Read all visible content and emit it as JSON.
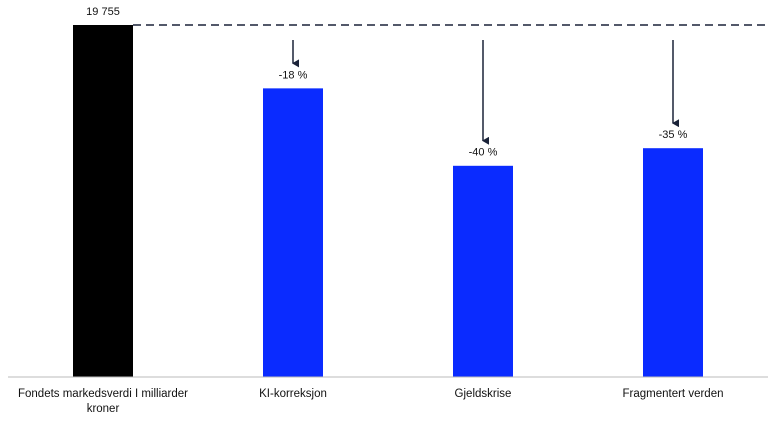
{
  "chart_data": {
    "type": "bar",
    "categories": [
      "Fondets markedsverdi I milliarder kroner",
      "KI-korreksjon",
      "Gjeldskrise",
      "Fragmentert verden"
    ],
    "values": [
      19755,
      16199,
      11853,
      12841
    ],
    "value_labels": [
      "19 755",
      null,
      null,
      null
    ],
    "changes": [
      null,
      -18,
      -40,
      -35
    ],
    "change_labels": [
      null,
      "-18 %",
      "-40 %",
      "-35 %"
    ],
    "colors": [
      "#000000",
      "#0a2bff",
      "#0a2bff",
      "#0a2bff"
    ]
  }
}
